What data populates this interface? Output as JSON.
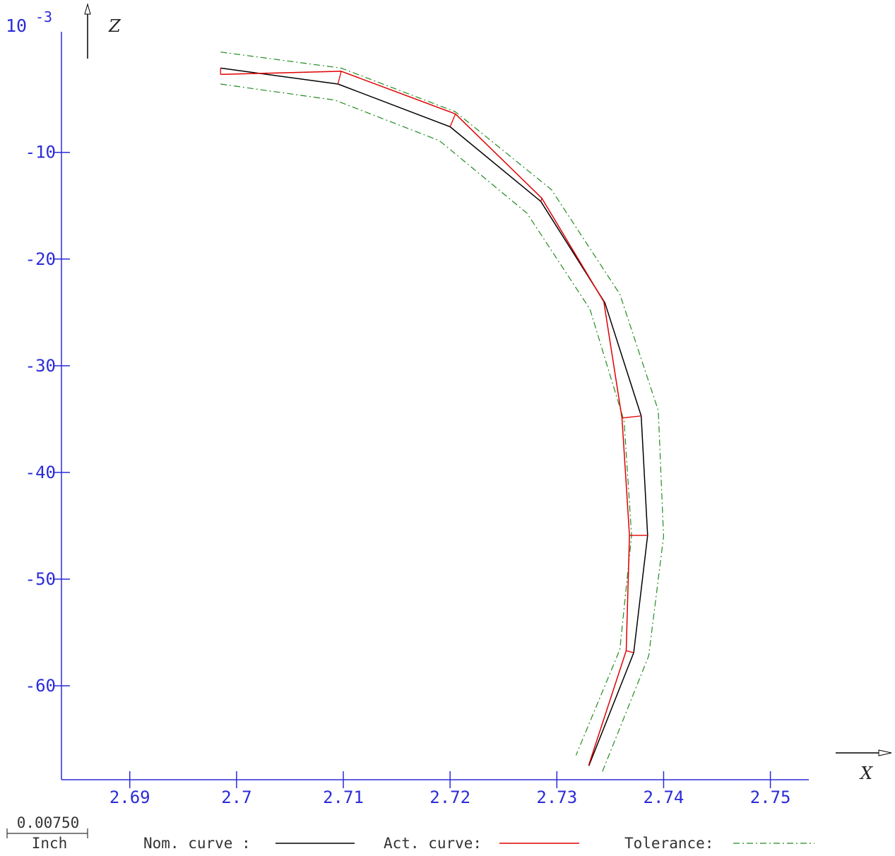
{
  "chart_data": {
    "type": "line",
    "y_multiplier_label": "10",
    "y_multiplier_exponent": "-3",
    "x_axis_name": "X",
    "y_axis_name": "Z",
    "xlim": [
      2.6836,
      2.7536
    ],
    "ylim": [
      -68.8,
      1.3
    ],
    "x_ticks": [
      {
        "value": 2.69,
        "label": "2.69"
      },
      {
        "value": 2.7,
        "label": "2.7"
      },
      {
        "value": 2.71,
        "label": "2.71"
      },
      {
        "value": 2.72,
        "label": "2.72"
      },
      {
        "value": 2.73,
        "label": "2.73"
      },
      {
        "value": 2.74,
        "label": "2.74"
      },
      {
        "value": 2.75,
        "label": "2.75"
      }
    ],
    "y_ticks": [
      {
        "value": -10,
        "label": "-10"
      },
      {
        "value": -20,
        "label": "-20"
      },
      {
        "value": -30,
        "label": "-30"
      },
      {
        "value": -40,
        "label": "-40"
      },
      {
        "value": -50,
        "label": "-50"
      },
      {
        "value": -60,
        "label": "-60"
      }
    ],
    "series": [
      {
        "key": "nominal",
        "color": "#000000",
        "dash": "",
        "points": [
          [
            2.6985,
            -2.1
          ],
          [
            2.7095,
            -3.6
          ],
          [
            2.72,
            -7.6
          ],
          [
            2.7285,
            -14.6
          ],
          [
            2.7345,
            -24.1
          ],
          [
            2.7379,
            -34.7
          ],
          [
            2.7385,
            -45.9
          ],
          [
            2.7372,
            -56.9
          ],
          [
            2.733,
            -67.5
          ]
        ]
      },
      {
        "key": "actual",
        "color": "#e00000",
        "dash": "",
        "points": [
          [
            2.6985,
            -2.7
          ],
          [
            2.7098,
            -2.4
          ],
          [
            2.7205,
            -6.4
          ],
          [
            2.7286,
            -14.3
          ],
          [
            2.7344,
            -24.0
          ],
          [
            2.7361,
            -34.9
          ],
          [
            2.7368,
            -45.9
          ],
          [
            2.7365,
            -56.7
          ],
          [
            2.733,
            -67.4
          ]
        ]
      },
      {
        "key": "tol_upper",
        "color": "#228b22",
        "dash": "9,4,2,4",
        "points": [
          [
            2.6985,
            -0.6
          ],
          [
            2.7098,
            -2.1
          ],
          [
            2.7205,
            -6.2
          ],
          [
            2.7295,
            -13.5
          ],
          [
            2.7359,
            -23.3
          ],
          [
            2.7395,
            -34.2
          ],
          [
            2.74,
            -46.0
          ],
          [
            2.7386,
            -57.2
          ],
          [
            2.7342,
            -68.2
          ]
        ]
      },
      {
        "key": "tol_lower",
        "color": "#228b22",
        "dash": "9,4,2,4",
        "points": [
          [
            2.6985,
            -3.6
          ],
          [
            2.7092,
            -5.1
          ],
          [
            2.719,
            -8.9
          ],
          [
            2.7272,
            -15.7
          ],
          [
            2.7331,
            -24.7
          ],
          [
            2.7363,
            -35.2
          ],
          [
            2.737,
            -45.9
          ],
          [
            2.7359,
            -56.6
          ],
          [
            2.7318,
            -66.5
          ]
        ]
      }
    ],
    "deviation_segments": [
      [
        [
          2.6985,
          -2.1
        ],
        [
          2.6985,
          -2.7
        ]
      ],
      [
        [
          2.7095,
          -3.6
        ],
        [
          2.7098,
          -2.4
        ]
      ],
      [
        [
          2.72,
          -7.6
        ],
        [
          2.7205,
          -6.4
        ]
      ],
      [
        [
          2.7285,
          -14.6
        ],
        [
          2.7286,
          -14.3
        ]
      ],
      [
        [
          2.7379,
          -34.7
        ],
        [
          2.7361,
          -34.9
        ]
      ],
      [
        [
          2.7385,
          -45.9
        ],
        [
          2.7368,
          -45.9
        ]
      ],
      [
        [
          2.7372,
          -56.9
        ],
        [
          2.7365,
          -56.7
        ]
      ]
    ]
  },
  "scale_bar": {
    "value": "0.00750",
    "unit": "Inch"
  },
  "legend": {
    "nominal_label": "Nom. curve :",
    "actual_label": "Act. curve:",
    "tolerance_label": "Tolerance:"
  },
  "colors": {
    "axis": "#2b2bd9",
    "nominal": "#000000",
    "actual": "#e00000",
    "tolerance": "#228b22"
  }
}
